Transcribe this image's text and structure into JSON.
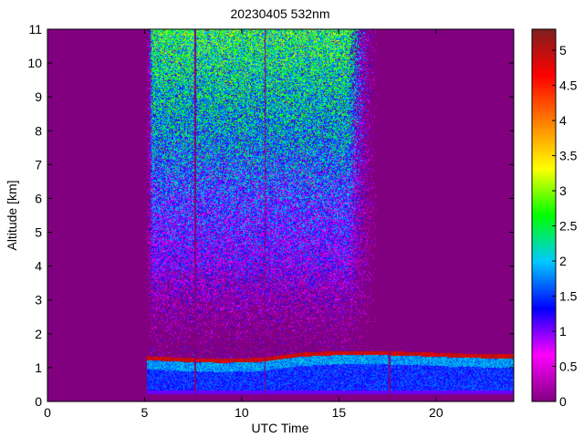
{
  "chart_data": {
    "type": "heatmap",
    "title": "20230405 532nm",
    "xlabel": "UTC Time",
    "ylabel": "Altitude [km]",
    "xlim": [
      0,
      24
    ],
    "ylim": [
      0,
      11
    ],
    "xticks": [
      0,
      5,
      10,
      15,
      20
    ],
    "yticks": [
      0,
      1,
      2,
      3,
      4,
      5,
      6,
      7,
      8,
      9,
      10,
      11
    ],
    "grid": false,
    "colorbar": {
      "min": 0,
      "max": 5.3,
      "ticks": [
        0,
        0.5,
        1,
        1.5,
        2,
        2.5,
        3,
        3.5,
        4,
        4.5,
        5
      ],
      "colormap": [
        "#800080",
        "#ff00ff",
        "#0000ff",
        "#00c8ff",
        "#00ff00",
        "#ffff00",
        "#ff8000",
        "#ff0000",
        "#7f1f1f"
      ]
    },
    "background_color": "#800080",
    "measurement_window_utc": [
      5.1,
      17.0
    ],
    "boundary_layer": [
      {
        "time": 5.1,
        "top_km": 1.3
      },
      {
        "time": 7.0,
        "top_km": 1.25
      },
      {
        "time": 9.0,
        "top_km": 1.22
      },
      {
        "time": 11.0,
        "top_km": 1.25
      },
      {
        "time": 13.0,
        "top_km": 1.4
      },
      {
        "time": 15.0,
        "top_km": 1.45
      },
      {
        "time": 17.0,
        "top_km": 1.45
      },
      {
        "time": 19.0,
        "top_km": 1.42
      },
      {
        "time": 21.0,
        "top_km": 1.38
      },
      {
        "time": 23.0,
        "top_km": 1.35
      },
      {
        "time": 24.0,
        "top_km": 1.35
      }
    ],
    "boundary_layer_extent_utc": [
      5.1,
      24.0
    ],
    "gaps_utc": [
      7.6,
      11.2,
      17.6
    ],
    "upper_noise_level_by_altitude": [
      {
        "altitude": 0.5,
        "value": 1.6
      },
      {
        "altitude": 2,
        "value": 0.4
      },
      {
        "altitude": 4,
        "value": 0.9
      },
      {
        "altitude": 6,
        "value": 1.4
      },
      {
        "altitude": 8,
        "value": 1.9
      },
      {
        "altitude": 10,
        "value": 2.3
      },
      {
        "altitude": 11,
        "value": 2.5
      }
    ]
  }
}
